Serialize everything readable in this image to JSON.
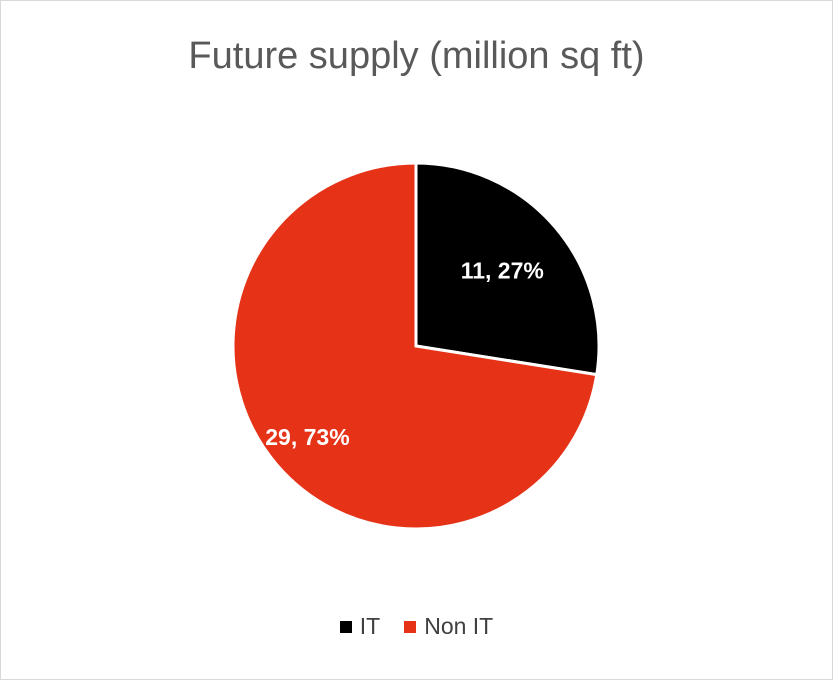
{
  "chart_data": {
    "type": "pie",
    "title": "Future supply (million sq ft)",
    "categories": [
      "IT",
      "Non IT"
    ],
    "values": [
      11,
      29
    ],
    "percent_labels": [
      "27%",
      "73%"
    ],
    "data_labels": [
      "11, 27%",
      "29, 73%"
    ],
    "colors": [
      "#000000",
      "#e63318"
    ],
    "legend_position": "bottom",
    "start_angle_deg": 0,
    "direction": "clockwise"
  }
}
